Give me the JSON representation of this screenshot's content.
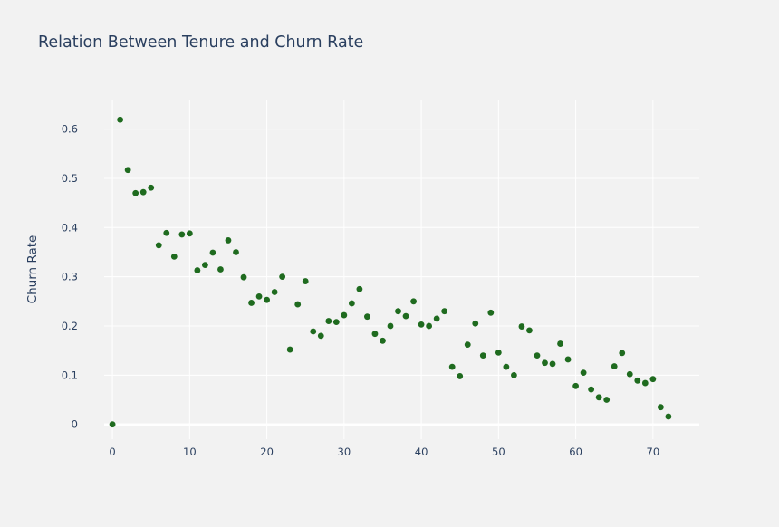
{
  "chart_data": {
    "type": "scatter",
    "title": "Relation Between Tenure and Churn Rate",
    "xlabel": "",
    "ylabel": "Churn Rate",
    "xlim": [
      -4,
      76
    ],
    "ylim": [
      -0.03,
      0.66
    ],
    "xticks": [
      0,
      10,
      20,
      30,
      40,
      50,
      60,
      70
    ],
    "yticks": [
      0,
      0.1,
      0.2,
      0.3,
      0.4,
      0.5,
      0.6
    ],
    "ytick_labels": [
      "0",
      "0.1",
      "0.2",
      "0.3",
      "0.4",
      "0.5",
      "0.6"
    ],
    "marker_color": "#1f6b1f",
    "grid": true,
    "x": [
      0,
      1,
      2,
      3,
      4,
      5,
      6,
      7,
      8,
      9,
      10,
      11,
      12,
      13,
      14,
      15,
      16,
      17,
      18,
      19,
      20,
      21,
      22,
      23,
      24,
      25,
      26,
      27,
      28,
      29,
      30,
      31,
      32,
      33,
      34,
      35,
      36,
      37,
      38,
      39,
      40,
      41,
      42,
      43,
      44,
      45,
      46,
      47,
      48,
      49,
      50,
      51,
      52,
      53,
      54,
      55,
      56,
      57,
      58,
      59,
      60,
      61,
      62,
      63,
      64,
      65,
      66,
      67,
      68,
      69,
      70,
      71,
      72
    ],
    "y": [
      0.0,
      0.619,
      0.517,
      0.47,
      0.472,
      0.481,
      0.364,
      0.389,
      0.341,
      0.386,
      0.388,
      0.313,
      0.324,
      0.349,
      0.315,
      0.374,
      0.35,
      0.299,
      0.247,
      0.26,
      0.253,
      0.269,
      0.3,
      0.152,
      0.244,
      0.291,
      0.189,
      0.18,
      0.21,
      0.208,
      0.222,
      0.246,
      0.275,
      0.219,
      0.184,
      0.17,
      0.2,
      0.23,
      0.22,
      0.25,
      0.203,
      0.2,
      0.215,
      0.23,
      0.117,
      0.098,
      0.162,
      0.205,
      0.14,
      0.227,
      0.146,
      0.117,
      0.1,
      0.199,
      0.191,
      0.14,
      0.125,
      0.123,
      0.164,
      0.132,
      0.078,
      0.105,
      0.071,
      0.055,
      0.05,
      0.118,
      0.145,
      0.102,
      0.089,
      0.084,
      0.092,
      0.035,
      0.016
    ]
  }
}
